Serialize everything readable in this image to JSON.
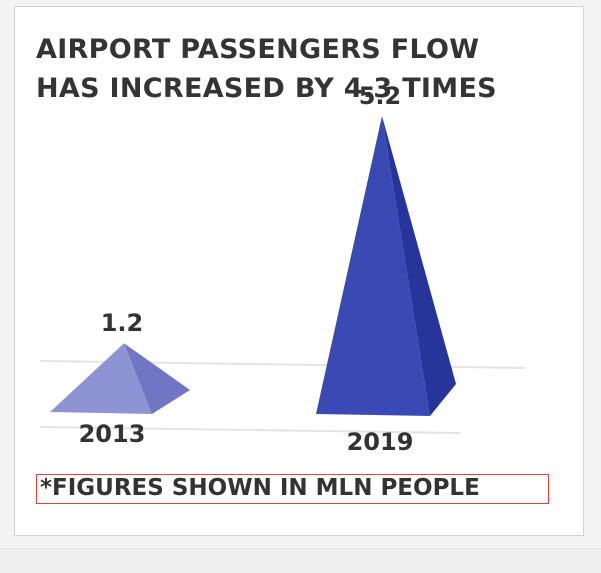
{
  "title_lines": [
    "AIRPORT PASSENGERS FLOW",
    "HAS INCREASED BY 4.3 TIMES"
  ],
  "footnote": "*FIGURES SHOWN IN MLN PEOPLE",
  "colors": {
    "pyramid_2013_front": "#8e93d4",
    "pyramid_2013_side": "#7076c4",
    "pyramid_2019_front": "#3a49b4",
    "pyramid_2019_side": "#27349a",
    "text": "#333333",
    "grid": "#e4e4e4",
    "footnote_border": "#e04545"
  },
  "chart_data": {
    "type": "bar",
    "mark": "pyramid",
    "categories": [
      "2013",
      "2019"
    ],
    "values": [
      1.2,
      5.2
    ],
    "value_labels": [
      "1.2",
      "5.2"
    ],
    "title": "AIRPORT PASSENGERS FLOW HAS INCREASED BY 4.3 TIMES",
    "note": "*FIGURES SHOWN IN MLN PEOPLE",
    "ylim": [
      0,
      5.2
    ],
    "grid": true,
    "legend": "none"
  }
}
